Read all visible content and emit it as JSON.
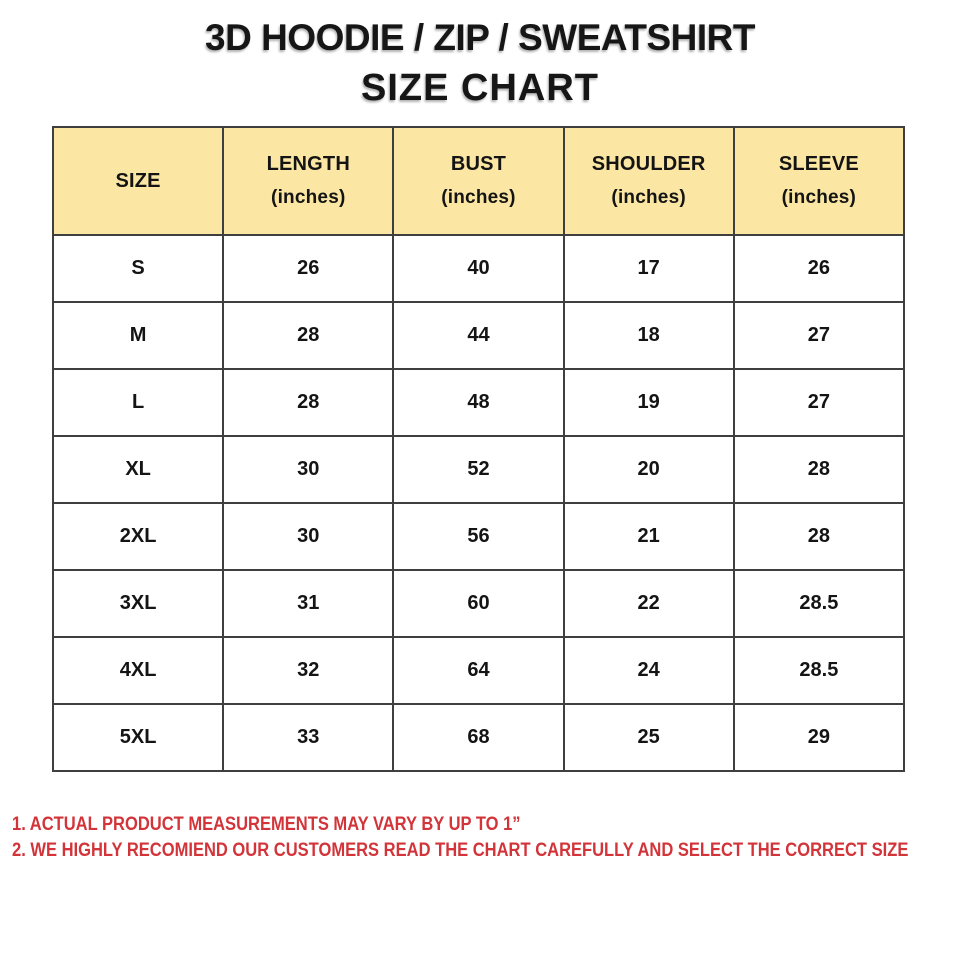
{
  "title": {
    "line1": "3D HOODIE / ZIP / SWEATSHIRT",
    "line2": "SIZE CHART"
  },
  "table": {
    "columns": [
      {
        "label": "SIZE",
        "sub": ""
      },
      {
        "label": "LENGTH",
        "sub": "(inches)"
      },
      {
        "label": "BUST",
        "sub": "(inches)"
      },
      {
        "label": "SHOULDER",
        "sub": "(inches)"
      },
      {
        "label": "SLEEVE",
        "sub": "(inches)"
      }
    ]
  },
  "notes": [
    "1. ACTUAL PRODUCT MEASUREMENTS MAY VARY BY UP TO 1”",
    "2. WE HIGHLY RECOMIEND OUR CUSTOMERS READ THE CHART CAREFULLY AND SELECT THE CORRECT SIZE"
  ],
  "colors": {
    "header_bg": "#FBE7A3",
    "border": "#3F3F3F",
    "note_red": "#D2343A",
    "text": "#141414"
  },
  "chart_data": {
    "type": "table",
    "title": "3D HOODIE / ZIP / SWEATSHIRT SIZE CHART",
    "columns": [
      "SIZE",
      "LENGTH (inches)",
      "BUST (inches)",
      "SHOULDER (inches)",
      "SLEEVE (inches)"
    ],
    "rows": [
      [
        "S",
        26,
        40,
        17,
        26
      ],
      [
        "M",
        28,
        44,
        18,
        27
      ],
      [
        "L",
        28,
        48,
        19,
        27
      ],
      [
        "XL",
        30,
        52,
        20,
        28
      ],
      [
        "2XL",
        30,
        56,
        21,
        28
      ],
      [
        "3XL",
        31,
        60,
        22,
        28.5
      ],
      [
        "4XL",
        32,
        64,
        24,
        28.5
      ],
      [
        "5XL",
        33,
        68,
        25,
        29
      ]
    ]
  }
}
